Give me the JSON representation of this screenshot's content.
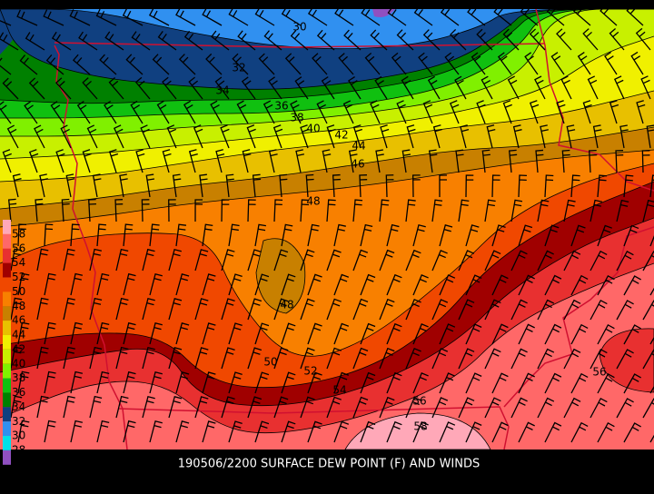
{
  "caption": "190506/2200 SURFACE DEW POINT (F) AND WINDS",
  "legend": {
    "levels": [
      58,
      56,
      54,
      52,
      50,
      48,
      46,
      44,
      42,
      40,
      38,
      36,
      34,
      32,
      30,
      28
    ],
    "colors": [
      "#ffa8b8",
      "#ff6868",
      "#e83030",
      "#a00000",
      "#f04800",
      "#f88000",
      "#c88000",
      "#e8c000",
      "#f0f000",
      "#c8f000",
      "#80f000",
      "#10c010",
      "#008000",
      "#104080",
      "#3090f0",
      "#00e0e8",
      "#9050c0"
    ]
  },
  "contour_labels": [
    "30",
    "32",
    "34",
    "36",
    "38",
    "40",
    "42",
    "44",
    "46",
    "48",
    "48",
    "50",
    "52",
    "54",
    "56",
    "56",
    "58"
  ]
}
